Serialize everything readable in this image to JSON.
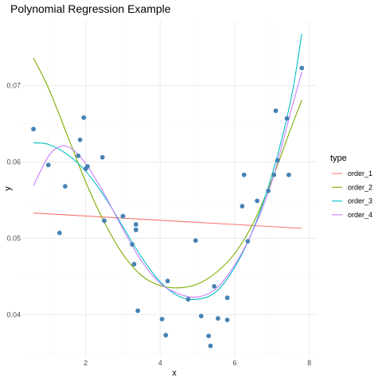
{
  "chart_data": {
    "type": "scatter",
    "title": "Polynomial Regression Example",
    "xlabel": "x",
    "ylabel": "y",
    "xlim": [
      0.3,
      8.2
    ],
    "ylim": [
      0.0345,
      0.0785
    ],
    "x_ticks": [
      2,
      4,
      6,
      8
    ],
    "y_ticks": [
      0.04,
      0.05,
      0.06,
      0.07
    ],
    "x_tick_labels": [
      "2",
      "4",
      "6",
      "8"
    ],
    "y_tick_labels": [
      "0.04",
      "0.05",
      "0.06",
      "0.07"
    ],
    "grid": true,
    "legend_title": "type",
    "legend_position": "right",
    "point_color": "#4682b4",
    "points": [
      {
        "x": 0.6,
        "y": 0.0643
      },
      {
        "x": 1.0,
        "y": 0.0596
      },
      {
        "x": 1.3,
        "y": 0.0507
      },
      {
        "x": 1.45,
        "y": 0.0568
      },
      {
        "x": 1.8,
        "y": 0.0608
      },
      {
        "x": 1.85,
        "y": 0.0629
      },
      {
        "x": 1.95,
        "y": 0.0658
      },
      {
        "x": 2.0,
        "y": 0.0591
      },
      {
        "x": 2.05,
        "y": 0.0594
      },
      {
        "x": 2.45,
        "y": 0.0606
      },
      {
        "x": 2.5,
        "y": 0.0523
      },
      {
        "x": 3.0,
        "y": 0.0529
      },
      {
        "x": 3.25,
        "y": 0.0492
      },
      {
        "x": 3.3,
        "y": 0.0466
      },
      {
        "x": 3.35,
        "y": 0.0518
      },
      {
        "x": 3.35,
        "y": 0.0511
      },
      {
        "x": 3.4,
        "y": 0.0405
      },
      {
        "x": 4.05,
        "y": 0.0394
      },
      {
        "x": 4.15,
        "y": 0.0373
      },
      {
        "x": 4.2,
        "y": 0.0444
      },
      {
        "x": 4.75,
        "y": 0.042
      },
      {
        "x": 4.95,
        "y": 0.0497
      },
      {
        "x": 5.1,
        "y": 0.0398
      },
      {
        "x": 5.3,
        "y": 0.0372
      },
      {
        "x": 5.35,
        "y": 0.0359
      },
      {
        "x": 5.45,
        "y": 0.0437
      },
      {
        "x": 5.55,
        "y": 0.0395
      },
      {
        "x": 5.8,
        "y": 0.0422
      },
      {
        "x": 5.8,
        "y": 0.0393
      },
      {
        "x": 6.2,
        "y": 0.0542
      },
      {
        "x": 6.25,
        "y": 0.0583
      },
      {
        "x": 6.35,
        "y": 0.0496
      },
      {
        "x": 6.6,
        "y": 0.0549
      },
      {
        "x": 6.9,
        "y": 0.0562
      },
      {
        "x": 7.05,
        "y": 0.0583
      },
      {
        "x": 7.1,
        "y": 0.0667
      },
      {
        "x": 7.15,
        "y": 0.0602
      },
      {
        "x": 7.4,
        "y": 0.0657
      },
      {
        "x": 7.45,
        "y": 0.0583
      },
      {
        "x": 7.8,
        "y": 0.0723
      }
    ],
    "series": [
      {
        "name": "order_1",
        "color": "#f8766d",
        "x": [
          0.6,
          7.8
        ],
        "y": [
          0.0533,
          0.0513
        ]
      },
      {
        "name": "order_2",
        "color": "#7cae00",
        "x": [
          0.6,
          1.0,
          1.5,
          2.0,
          2.5,
          3.0,
          3.5,
          4.0,
          4.5,
          5.0,
          5.5,
          6.0,
          6.5,
          7.0,
          7.5,
          7.8
        ],
        "y": [
          0.0736,
          0.0697,
          0.0636,
          0.0574,
          0.0521,
          0.0479,
          0.0451,
          0.0438,
          0.0435,
          0.044,
          0.0455,
          0.048,
          0.052,
          0.0577,
          0.0643,
          0.0681
        ]
      },
      {
        "name": "order_3",
        "color": "#00bfc4",
        "x": [
          0.6,
          1.0,
          1.5,
          2.0,
          2.5,
          3.0,
          3.5,
          4.0,
          4.5,
          5.0,
          5.5,
          6.0,
          6.5,
          7.0,
          7.5,
          7.8
        ],
        "y": [
          0.0625,
          0.0623,
          0.061,
          0.0588,
          0.0555,
          0.0515,
          0.0475,
          0.0443,
          0.0424,
          0.042,
          0.043,
          0.0462,
          0.0512,
          0.0583,
          0.068,
          0.0768
        ]
      },
      {
        "name": "order_4",
        "color": "#c77cff",
        "x": [
          0.6,
          1.0,
          1.3,
          1.6,
          2.0,
          2.5,
          3.0,
          3.5,
          4.0,
          4.5,
          5.0,
          5.5,
          6.0,
          6.5,
          7.0,
          7.5,
          7.8
        ],
        "y": [
          0.0569,
          0.0607,
          0.062,
          0.0618,
          0.0598,
          0.0558,
          0.0512,
          0.047,
          0.0441,
          0.0427,
          0.0423,
          0.0434,
          0.0465,
          0.0511,
          0.0575,
          0.0665,
          0.0718
        ]
      }
    ]
  }
}
